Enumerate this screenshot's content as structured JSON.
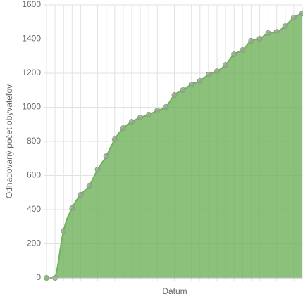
{
  "chart_data": {
    "type": "area",
    "y_label": "Odhadovaný počet obyvateľov",
    "x_label": "Dátum",
    "categories": [
      null,
      null,
      null,
      null,
      null,
      null,
      null,
      null,
      null,
      null,
      null,
      null,
      null,
      null,
      null,
      null,
      null,
      null,
      null,
      null,
      null,
      null,
      null,
      null,
      null,
      null,
      null,
      null,
      null,
      null,
      null
    ],
    "values": [
      0,
      0,
      276,
      408,
      487,
      540,
      635,
      713,
      812,
      878,
      915,
      940,
      957,
      981,
      1002,
      1072,
      1101,
      1134,
      1155,
      1192,
      1212,
      1249,
      1311,
      1336,
      1390,
      1402,
      1435,
      1443,
      1476,
      1526,
      1550
    ],
    "color": "#6fb25a",
    "ylim": [
      0,
      1600
    ],
    "yticks": [
      0,
      200,
      400,
      600,
      800,
      1000,
      1200,
      1400,
      1600
    ],
    "grid": true
  }
}
